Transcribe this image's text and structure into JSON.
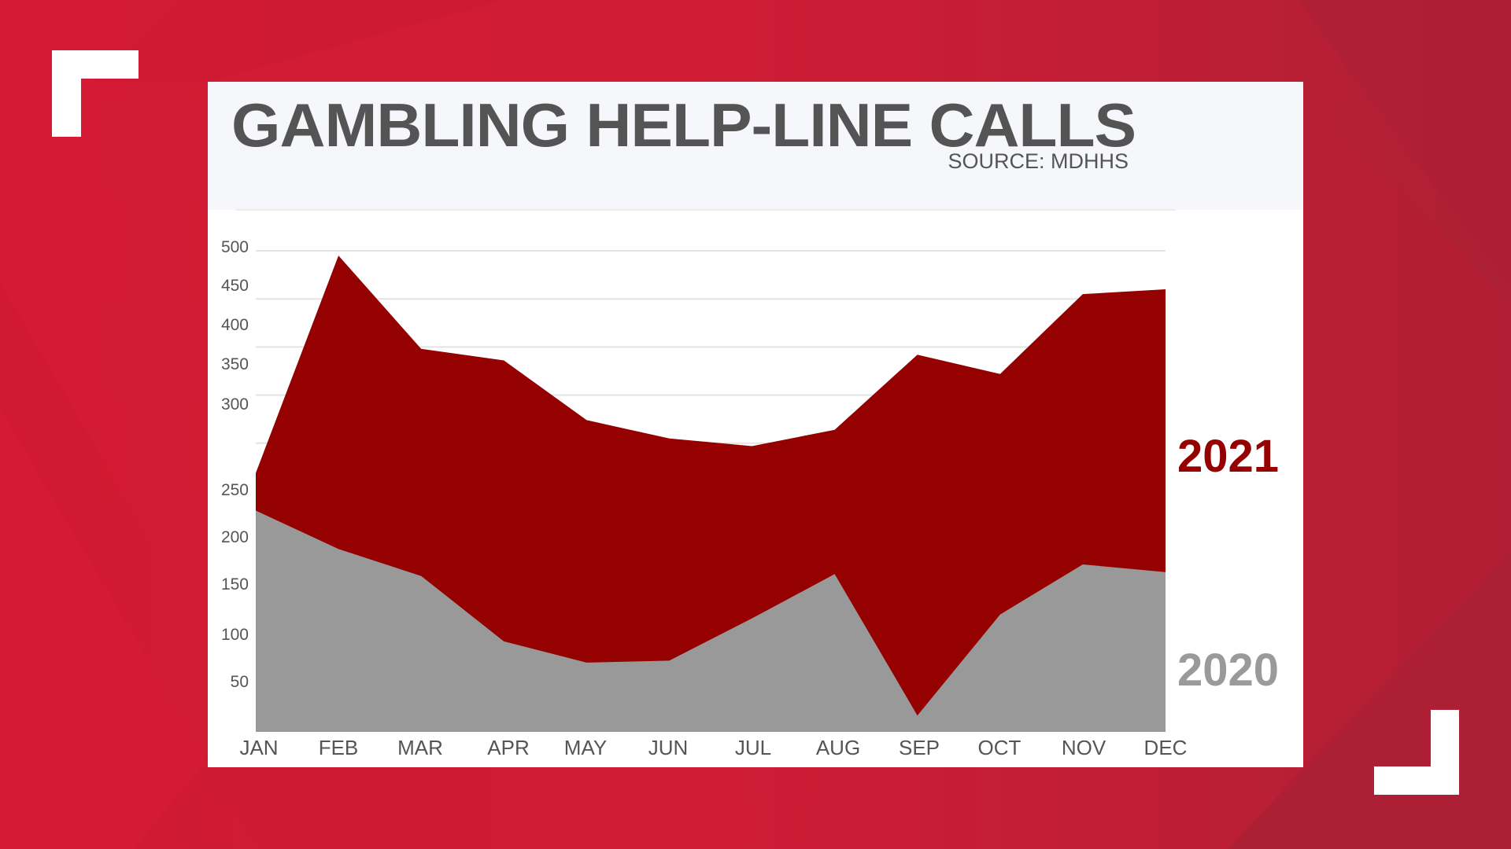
{
  "header": {
    "title": "GAMBLING HELP-LINE CALLS",
    "source": "SOURCE: MDHHS"
  },
  "colors": {
    "background": "#d01c35",
    "background_dark": "#ad2035",
    "panel": "#ffffff",
    "header_panel": "#f5f7fb",
    "title_text": "#545454",
    "series_2021": "#950000",
    "series_2020": "#999999",
    "gridline": "#e3e3e3",
    "bracket": "#ffffff"
  },
  "legend": {
    "label_2021": "2021",
    "label_2020": "2020"
  },
  "chart_data": {
    "type": "area",
    "title": "GAMBLING HELP-LINE CALLS",
    "subtitle": "SOURCE: MDHHS",
    "xlabel": "",
    "ylabel": "",
    "categories": [
      "JAN",
      "FEB",
      "MAR",
      "APR",
      "MAY",
      "JUN",
      "JUL",
      "AUG",
      "SEP",
      "OCT",
      "NOV",
      "DEC"
    ],
    "series": [
      {
        "name": "2021",
        "color": "#950000",
        "values": [
          269,
          495,
          398,
          386,
          324,
          305,
          297,
          314,
          392,
          372,
          455,
          460
        ]
      },
      {
        "name": "2020",
        "color": "#999999",
        "values": [
          230,
          190,
          162,
          94,
          72,
          74,
          118,
          164,
          17,
          122,
          174,
          166
        ]
      }
    ],
    "y_ticks": [
      50,
      100,
      150,
      200,
      250,
      300,
      350,
      400,
      450,
      500
    ],
    "ylim": [
      0,
      500
    ],
    "grid": true,
    "legend_position": "right (direct labels)",
    "overlap": "areas overlaid (not stacked); 2020 drawn in front of 2021"
  }
}
